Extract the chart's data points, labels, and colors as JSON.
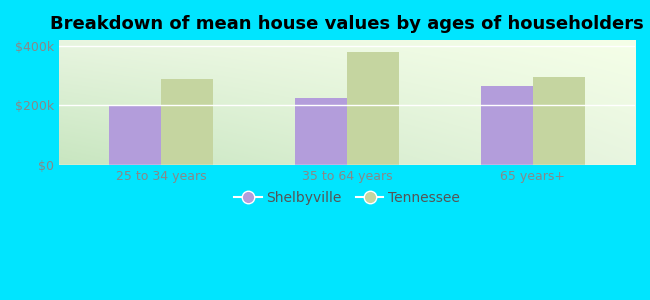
{
  "title": "Breakdown of mean house values by ages of householders",
  "categories": [
    "25 to 34 years",
    "35 to 64 years",
    "65 years+"
  ],
  "shelbyville_values": [
    200000,
    225000,
    265000
  ],
  "tennessee_values": [
    290000,
    380000,
    295000
  ],
  "shelbyville_color": "#b39ddb",
  "tennessee_color": "#c5d5a0",
  "background_color": "#00e5ff",
  "plot_bg_color": "#e8f5e0",
  "ylim": [
    0,
    420000
  ],
  "yticks": [
    0,
    200000,
    400000
  ],
  "ytick_labels": [
    "$0",
    "$200k",
    "$400k"
  ],
  "legend_labels": [
    "Shelbyville",
    "Tennessee"
  ],
  "bar_width": 0.28,
  "title_fontsize": 13,
  "tick_fontsize": 9,
  "legend_fontsize": 10,
  "grid_color": "#ffffff",
  "tick_color": "#888888"
}
